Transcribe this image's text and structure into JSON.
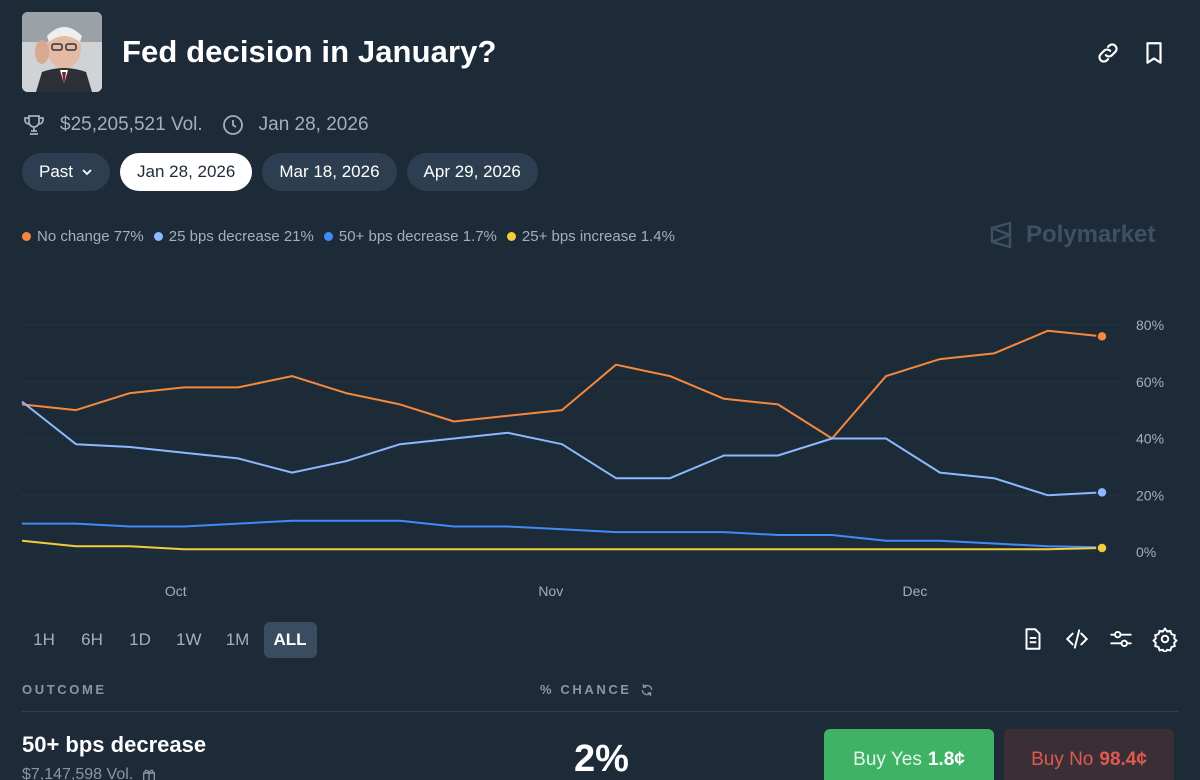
{
  "market": {
    "title": "Fed decision in January?",
    "volume": "$25,205,521 Vol.",
    "end_date": "Jan 28, 2026"
  },
  "date_tabs": {
    "past_label": "Past",
    "tabs": [
      "Jan 28, 2026",
      "Mar 18, 2026",
      "Apr 29, 2026"
    ],
    "active": "Jan 28, 2026"
  },
  "brand": "Polymarket",
  "legend": [
    {
      "label": "No change 77%",
      "color": "#f5883d"
    },
    {
      "label": "25 bps decrease 21%",
      "color": "#8db8ff"
    },
    {
      "label": "50+ bps decrease 1.7%",
      "color": "#3f8cf5"
    },
    {
      "label": "25+ bps increase 1.4%",
      "color": "#f5cc3a"
    }
  ],
  "chart_data": {
    "type": "line",
    "title": "",
    "xlabel": "",
    "ylabel": "",
    "x": [
      0,
      0.05,
      0.1,
      0.15,
      0.2,
      0.25,
      0.3,
      0.35,
      0.4,
      0.45,
      0.5,
      0.55,
      0.6,
      0.65,
      0.7,
      0.75,
      0.8,
      0.85,
      0.9,
      0.95,
      1
    ],
    "x_tick_labels": [
      {
        "label": "Oct",
        "x": 0.1424
      },
      {
        "label": "Nov",
        "x": 0.4896
      },
      {
        "label": "Dec",
        "x": 0.8268
      }
    ],
    "y_ticks": [
      "0%",
      "20%",
      "40%",
      "60%",
      "80%"
    ],
    "ylim": [
      0,
      80
    ],
    "series": [
      {
        "name": "No change",
        "color": "#f5883d",
        "values": [
          52,
          50,
          56,
          58,
          58,
          62,
          56,
          52,
          46,
          48,
          50,
          66,
          62,
          54,
          52,
          40,
          62,
          68,
          70,
          78,
          76
        ]
      },
      {
        "name": "25 bps decrease",
        "color": "#8db8ff",
        "values": [
          53,
          38,
          37,
          35,
          33,
          28,
          32,
          38,
          40,
          42,
          38,
          26,
          26,
          34,
          34,
          40,
          40,
          28,
          26,
          20,
          21
        ]
      },
      {
        "name": "50+ bps decrease",
        "color": "#3f8cf5",
        "values": [
          10,
          10,
          9,
          9,
          10,
          11,
          11,
          11,
          9,
          9,
          8,
          7,
          7,
          7,
          6,
          6,
          4,
          4,
          3,
          2,
          1.7
        ]
      },
      {
        "name": "25+ bps increase",
        "color": "#f5cc3a",
        "values": [
          4,
          2,
          2,
          1,
          1,
          1,
          1,
          1,
          1,
          1,
          1,
          1,
          1,
          1,
          1,
          1,
          1,
          1,
          1,
          1,
          1.4
        ]
      }
    ]
  },
  "ranges": {
    "items": [
      "1H",
      "6H",
      "1D",
      "1W",
      "1M",
      "ALL"
    ],
    "active": "ALL"
  },
  "table": {
    "outcome_header": "OUTCOME",
    "chance_header": "% CHANCE",
    "row": {
      "name": "50+ bps decrease",
      "volume": "$7,147,598 Vol.",
      "chance": "2%",
      "buy_yes_label": "Buy Yes",
      "buy_yes_price": "1.8¢",
      "buy_no_label": "Buy No",
      "buy_no_price": "98.4¢"
    }
  }
}
